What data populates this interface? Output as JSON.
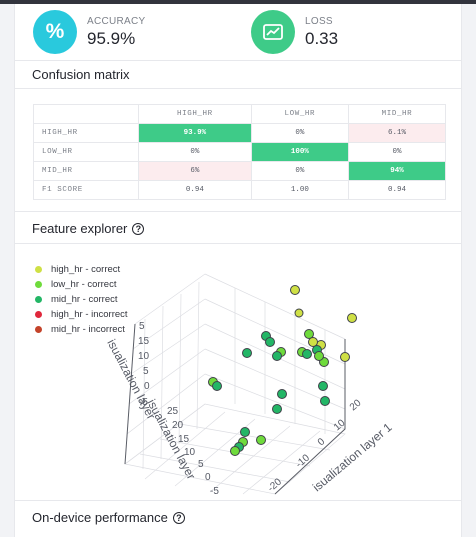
{
  "metrics": {
    "accuracy": {
      "label": "ACCURACY",
      "value": "95.9%",
      "icon": "percent-icon",
      "color": "#29c9dd"
    },
    "loss": {
      "label": "LOSS",
      "value": "0.33",
      "icon": "trend-chart-icon",
      "color": "#3ecb88"
    }
  },
  "confusion": {
    "title": "Confusion matrix",
    "columns": [
      "HIGH_HR",
      "LOW_HR",
      "MID_HR"
    ],
    "rows": [
      {
        "label": "HIGH_HR",
        "cells": [
          "93.9%",
          "0%",
          "6.1%"
        ]
      },
      {
        "label": "LOW_HR",
        "cells": [
          "0%",
          "100%",
          "0%"
        ]
      },
      {
        "label": "MID_HR",
        "cells": [
          "6%",
          "0%",
          "94%"
        ]
      },
      {
        "label": "F1 SCORE",
        "cells": [
          "0.94",
          "1.00",
          "0.94"
        ]
      }
    ],
    "highlight_color": "#3ecb88",
    "error_color": "#fcecee"
  },
  "explorer": {
    "title": "Feature explorer",
    "legend": [
      {
        "label": "high_hr - correct",
        "color": "#cfe045"
      },
      {
        "label": "low_hr - correct",
        "color": "#6fdb3c"
      },
      {
        "label": "mid_hr - correct",
        "color": "#23b666"
      },
      {
        "label": "high_hr - incorrect",
        "color": "#e0283c"
      },
      {
        "label": "mid_hr - incorrect",
        "color": "#c4432a"
      }
    ],
    "axis_titles": {
      "a": "isualization layer",
      "b": "isualization layer",
      "c": "isualization layer 1"
    },
    "ticks_a": [
      "15",
      "10",
      "5",
      "0",
      "-5"
    ],
    "ticks_b": [
      "25",
      "20",
      "15",
      "10",
      "5",
      "0",
      "-5"
    ],
    "ticks_c": [
      "20",
      "10",
      "0",
      "-10",
      "-20"
    ],
    "clipped_tick": "5"
  },
  "performance": {
    "title": "On-device performance"
  }
}
